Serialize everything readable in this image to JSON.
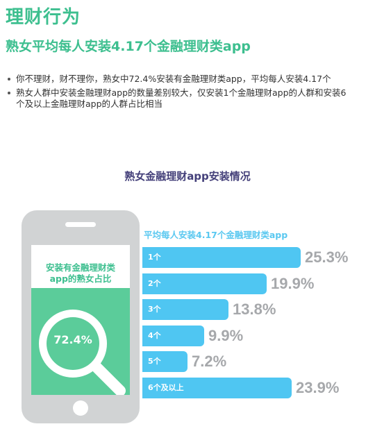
{
  "section_title": "理财行为",
  "subtitle": "熟女平均每人安装4.17个金融理财类app",
  "bullets": [
    "你不理财，财不理你，熟女中72.4%安装有金融理财类app，平均每人安装4.17个",
    "熟女人群中安装金融理财app的数量差别较大，仅安装1个金融理财app的人群和安装6个及以上金融理财app的人群占比相当"
  ],
  "phone": {
    "label_line1": "安装有金融理财类",
    "label_line2": "app的熟女占比",
    "percent_text": "72.4%",
    "percent_value": 72.4,
    "icon": "magnifier-icon"
  },
  "colors": {
    "green": "#3dbf8f",
    "green_fill": "#5bcc9a",
    "bar_blue": "#4fc6f2",
    "value_gray": "#a6a8ab",
    "title_purple": "#44407a"
  },
  "chart_data": {
    "type": "bar",
    "orientation": "horizontal",
    "title": "熟女金融理财app安装情况",
    "annotation": "平均每人安装4.17个金融理财类app",
    "categories": [
      "1个",
      "2个",
      "3个",
      "4个",
      "5个",
      "6个及以上"
    ],
    "values": [
      25.3,
      19.9,
      13.8,
      9.9,
      7.2,
      23.9
    ],
    "value_labels": [
      "25.3%",
      "19.9%",
      "13.8%",
      "9.9%",
      "7.2%",
      "23.9%"
    ],
    "unit": "%",
    "grid": false,
    "legend": "none"
  }
}
